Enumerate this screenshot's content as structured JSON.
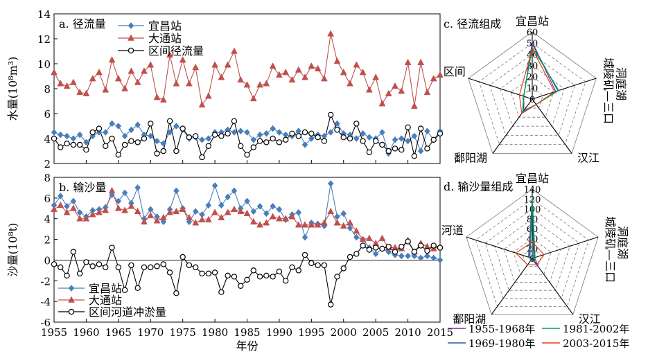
{
  "chart_data": [
    {
      "id": "a",
      "type": "line",
      "title": "a. 径流量",
      "ylabel": "水量(10⁸m³)",
      "xlabel": "",
      "ylim": [
        2,
        14
      ],
      "yticks": [
        2,
        4,
        6,
        8,
        10,
        12,
        14
      ],
      "x_start": 1955,
      "x_end": 2015,
      "grid": false,
      "legend": "top-center",
      "series": [
        {
          "name": "宜昌站",
          "color": "#4a7ebb",
          "marker": "diamond",
          "values": [
            4.5,
            4.3,
            4.2,
            4.0,
            4.3,
            3.7,
            4.2,
            4.5,
            4.5,
            5.2,
            5.0,
            4.2,
            4.7,
            5.1,
            4.3,
            4.2,
            3.8,
            3.6,
            4.5,
            5.0,
            4.7,
            4.0,
            4.1,
            3.9,
            4.0,
            4.5,
            4.5,
            4.7,
            4.5,
            4.6,
            4.5,
            3.9,
            4.3,
            4.4,
            4.8,
            4.5,
            4.3,
            4.2,
            4.6,
            3.5,
            4.0,
            4.3,
            4.2,
            4.5,
            5.2,
            4.4,
            4.3,
            4.0,
            4.4,
            4.1,
            4.0,
            4.5,
            2.8,
            3.9,
            4.0,
            3.8,
            4.2,
            3.0,
            4.6,
            3.9,
            4.6
          ]
        },
        {
          "name": "大通站",
          "color": "#c0504d",
          "marker": "triangle",
          "values": [
            9.3,
            8.4,
            8.2,
            8.5,
            7.7,
            7.6,
            8.8,
            9.3,
            7.9,
            10.3,
            8.8,
            8.0,
            9.4,
            8.5,
            9.4,
            9.9,
            7.3,
            7.1,
            10.7,
            8.4,
            10.3,
            8.4,
            9.7,
            6.7,
            7.4,
            9.9,
            8.9,
            9.9,
            11.0,
            8.7,
            8.3,
            7.2,
            8.3,
            8.4,
            9.8,
            9.1,
            9.3,
            8.7,
            9.5,
            8.9,
            9.8,
            9.6,
            8.8,
            12.4,
            10.2,
            9.3,
            8.4,
            9.9,
            9.3,
            7.9,
            8.9,
            6.8,
            7.6,
            8.2,
            7.8,
            10.1,
            6.6,
            10.1,
            7.7,
            8.8,
            9.1
          ]
        },
        {
          "name": "区间径流量",
          "color": "#000000",
          "marker": "circle",
          "values": [
            4.0,
            3.3,
            3.6,
            3.5,
            3.5,
            3.1,
            4.5,
            4.8,
            3.4,
            4.0,
            2.7,
            3.5,
            3.8,
            3.7,
            4.0,
            5.2,
            2.8,
            3.0,
            5.4,
            3.0,
            4.8,
            4.1,
            4.2,
            2.5,
            3.4,
            4.3,
            4.2,
            4.4,
            5.4,
            3.4,
            2.7,
            3.3,
            3.8,
            3.7,
            4.0,
            3.7,
            3.9,
            4.4,
            4.2,
            4.5,
            4.4,
            4.1,
            3.8,
            5.9,
            4.7,
            4.1,
            4.0,
            5.2,
            3.8,
            2.9,
            3.8,
            3.5,
            3.0,
            3.2,
            3.1,
            4.9,
            2.6,
            4.8,
            3.2,
            3.9,
            4.4
          ]
        }
      ]
    },
    {
      "id": "b",
      "type": "line",
      "title": "b. 输沙量",
      "ylabel": "沙量(10⁸t)",
      "xlabel": "年份",
      "ylim": [
        -6,
        8
      ],
      "yticks": [
        -6,
        -4,
        -2,
        0,
        2,
        4,
        6,
        8
      ],
      "xticks": [
        1955,
        1960,
        1965,
        1970,
        1975,
        1980,
        1985,
        1990,
        1995,
        2000,
        2005,
        2010,
        2015
      ],
      "x_start": 1955,
      "x_end": 2015,
      "grid": false,
      "legend": "bottom-left",
      "series": [
        {
          "name": "宜昌站",
          "color": "#4a7ebb",
          "marker": "diamond",
          "values": [
            5.3,
            6.2,
            5.2,
            5.7,
            4.6,
            4.2,
            4.8,
            4.9,
            5.1,
            6.3,
            5.7,
            6.5,
            5.5,
            7.0,
            4.0,
            4.9,
            4.2,
            3.7,
            4.9,
            6.7,
            5.0,
            3.7,
            4.7,
            4.4,
            5.3,
            7.2,
            5.3,
            6.1,
            6.7,
            5.0,
            5.7,
            4.7,
            5.2,
            4.5,
            5.2,
            4.9,
            3.9,
            4.4,
            4.6,
            2.2,
            3.6,
            3.5,
            3.3,
            7.4,
            4.2,
            4.5,
            3.1,
            2.2,
            2.0,
            1.2,
            0.6,
            1.1,
            0.8,
            0.5,
            0.4,
            0.4,
            0.4,
            0.2,
            0.4,
            0.2,
            0.0
          ]
        },
        {
          "name": "大通站",
          "color": "#c0504d",
          "marker": "triangle",
          "values": [
            4.9,
            5.3,
            4.6,
            5.0,
            4.0,
            4.0,
            4.4,
            4.6,
            4.8,
            6.7,
            5.0,
            4.8,
            5.2,
            4.7,
            3.7,
            4.3,
            3.8,
            4.1,
            4.6,
            4.7,
            4.9,
            4.1,
            3.6,
            3.9,
            3.9,
            4.6,
            4.1,
            4.6,
            4.9,
            4.7,
            4.5,
            3.7,
            3.4,
            3.6,
            4.2,
            4.0,
            4.0,
            4.2,
            3.4,
            3.4,
            3.4,
            3.4,
            3.6,
            4.7,
            3.6,
            3.3,
            3.6,
            2.8,
            2.0,
            2.1,
            1.6,
            2.1,
            1.2,
            1.2,
            1.1,
            1.9,
            0.8,
            1.6,
            1.3,
            1.1,
            1.3
          ]
        },
        {
          "name": "区间河道冲淤量",
          "color": "#000000",
          "marker": "circle",
          "values": [
            -0.4,
            -0.7,
            -1.5,
            0.8,
            -1.3,
            -0.2,
            -0.6,
            -0.4,
            -0.7,
            1.2,
            -0.7,
            -2.9,
            -0.5,
            -2.7,
            -0.7,
            -0.7,
            -0.6,
            -0.4,
            -1.2,
            -3.2,
            0.3,
            -0.5,
            -0.7,
            -1.3,
            -1.3,
            -1.2,
            -3.1,
            -1.5,
            -1.6,
            -2.5,
            -1.9,
            -1.0,
            -1.6,
            -1.5,
            -1.6,
            -1.1,
            -2.0,
            -0.7,
            -1.0,
            0.5,
            -0.3,
            -0.5,
            -0.5,
            -4.3,
            -1.6,
            -0.8,
            0.3,
            0.6,
            1.4,
            1.0,
            1.2,
            1.1,
            1.3,
            0.8,
            1.3,
            1.8,
            0.8,
            1.4,
            0.9,
            1.4,
            1.2
          ]
        }
      ]
    },
    {
      "id": "c",
      "type": "radar",
      "title": "c. 径流组成",
      "rmax": 60,
      "rticks": [
        0,
        10,
        20,
        30,
        40,
        50,
        60
      ],
      "axes": [
        "宜昌站",
        "洞庭湖城陵矶—三口",
        "汉江",
        "鄱阳湖",
        "区间"
      ],
      "series": [
        {
          "name": "1955-1968年",
          "color": "#7030a0",
          "values": [
            51,
            22,
            6,
            13,
            8
          ]
        },
        {
          "name": "1969-1980年",
          "color": "#1f5f9f",
          "values": [
            49,
            24,
            6,
            13,
            8
          ]
        },
        {
          "name": "1981-2002年",
          "color": "#00a050",
          "values": [
            46,
            25,
            6,
            15,
            8
          ]
        },
        {
          "name": "2003-2015年",
          "color": "#e0401a",
          "values": [
            45,
            21,
            6,
            16,
            12
          ]
        }
      ]
    },
    {
      "id": "d",
      "type": "radar",
      "title": "d. 输沙量组成",
      "rmax": 140,
      "rticks": [
        0,
        20,
        40,
        60,
        80,
        100,
        120,
        140
      ],
      "axes": [
        "宜昌站",
        "洞庭湖城陵矶—三口",
        "汉江",
        "鄱阳湖",
        "河道"
      ],
      "series": [
        {
          "name": "1955-1968年",
          "color": "#7030a0",
          "values": [
            121,
            5,
            22,
            2,
            8
          ]
        },
        {
          "name": "1969-1980年",
          "color": "#1f5f9f",
          "values": [
            117,
            3,
            10,
            2,
            5
          ]
        },
        {
          "name": "1981-2002年",
          "color": "#00a050",
          "values": [
            125,
            6,
            8,
            5,
            6
          ]
        },
        {
          "name": "2003-2015年",
          "color": "#e0401a",
          "values": [
            33,
            25,
            16,
            16,
            35
          ]
        }
      ]
    }
  ],
  "radar_legend": [
    "1955-1968年",
    "1981-2002年",
    "1969-1980年",
    "2003-2015年"
  ]
}
